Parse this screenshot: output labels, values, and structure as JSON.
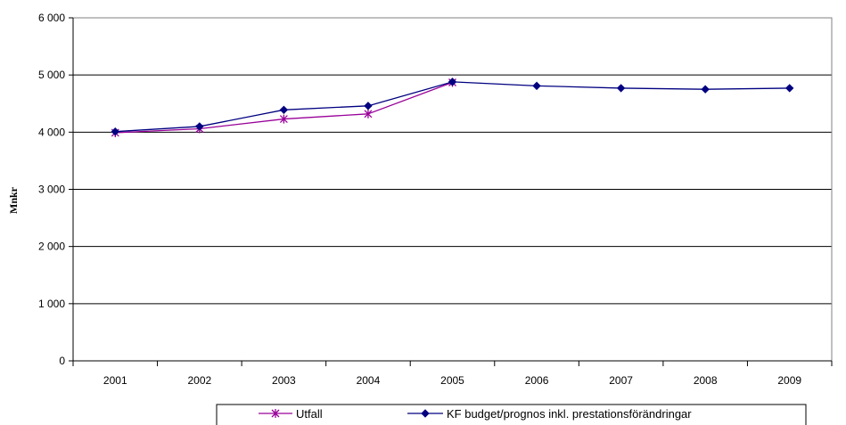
{
  "chart_data": {
    "type": "line",
    "title": "",
    "xlabel": "",
    "ylabel": "Mnkr",
    "categories": [
      "2001",
      "2002",
      "2003",
      "2004",
      "2005",
      "2006",
      "2007",
      "2008",
      "2009"
    ],
    "ylim": [
      0,
      6000
    ],
    "yticks": [
      0,
      1000,
      2000,
      3000,
      4000,
      5000,
      6000
    ],
    "ytick_labels": [
      "0",
      "1 000",
      "2 000",
      "3 000",
      "4 000",
      "5 000",
      "6 000"
    ],
    "grid": true,
    "legend_position": "bottom",
    "series": [
      {
        "name": "Utfall",
        "color": "#990099",
        "marker": "asterisk",
        "values": [
          3990,
          4060,
          4230,
          4320,
          4870,
          null,
          null,
          null,
          null
        ]
      },
      {
        "name": "KF budget/prognos inkl. prestationsförändringar",
        "color": "#000080",
        "marker": "diamond",
        "values": [
          4010,
          4100,
          4390,
          4460,
          4880,
          4810,
          4770,
          4750,
          4770
        ]
      }
    ]
  }
}
